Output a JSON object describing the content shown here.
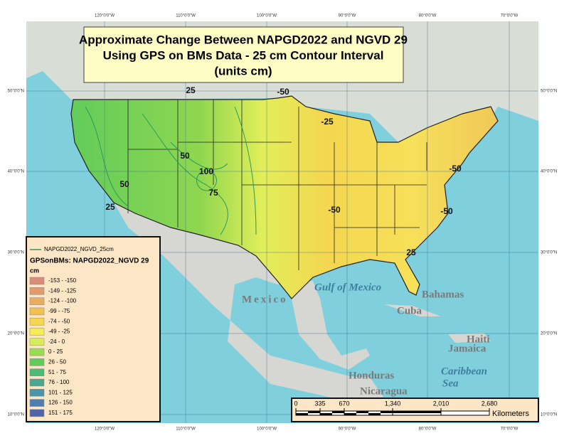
{
  "title": [
    "Approximate Change Between NAPGD2022 and NGVD 29",
    "Using GPS on BMs Data - 25 cm Contour Interval",
    "(units cm)"
  ],
  "graticule": {
    "longitudes": [
      "120°0'0\"W",
      "110°0'0\"W",
      "100°0'0\"W",
      "90°0'0\"W",
      "80°0'0\"W",
      "70°0'0\"W"
    ],
    "latitudes": [
      "50°0'0\"N",
      "40°0'0\"N",
      "30°0'0\"N",
      "20°0'0\"N",
      "10°0'0\"N"
    ]
  },
  "legend": {
    "line_label": "NAPGD2022_NGVD_25cm",
    "title": "GPSonBMs: NAPGD2022_NGVD 29",
    "unit": "cm",
    "classes": [
      {
        "label": "-153 - -150",
        "color": "#d98c78"
      },
      {
        "label": "-149 - -125",
        "color": "#e09c6c"
      },
      {
        "label": "-124 - -100",
        "color": "#e8ae5c"
      },
      {
        "label": "-99 - -75",
        "color": "#f0c050"
      },
      {
        "label": "-74 - -50",
        "color": "#f4d650"
      },
      {
        "label": "-49 - -25",
        "color": "#f6ec5a"
      },
      {
        "label": "-24 - 0",
        "color": "#d6ee5a"
      },
      {
        "label": "0 - 25",
        "color": "#98dc50"
      },
      {
        "label": "26 - 50",
        "color": "#62cc5a"
      },
      {
        "label": "51 - 75",
        "color": "#4cbc72"
      },
      {
        "label": "76 - 100",
        "color": "#4aa890"
      },
      {
        "label": "101 - 125",
        "color": "#4c94a8"
      },
      {
        "label": "126 - 150",
        "color": "#4e7eb0"
      },
      {
        "label": "151 - 175",
        "color": "#4e66a6"
      }
    ]
  },
  "places": [
    "Mexico",
    "Gulf of Mexico",
    "Bahamas",
    "Cuba",
    "Haiti",
    "Jamaica",
    "Caribbean",
    "Sea",
    "Honduras",
    "Nicaragua"
  ],
  "contour_labels": [
    "-50",
    "25",
    "50",
    "75",
    "100",
    "50",
    "25",
    "-25",
    "-50",
    "-50",
    "25",
    "-50"
  ],
  "scale_bar": {
    "ticks": [
      "0",
      "335",
      "670",
      "1,340",
      "2,010",
      "2,680"
    ],
    "unit": "Kilometers"
  }
}
